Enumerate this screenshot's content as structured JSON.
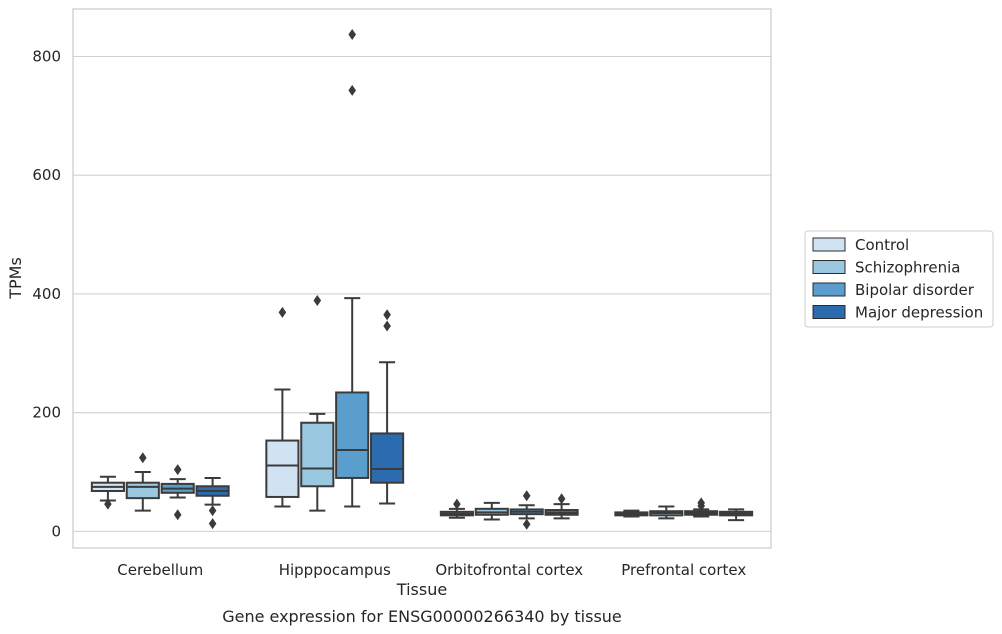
{
  "chart_data": {
    "type": "box",
    "caption": "Gene expression for ENSG00000266340 by tissue",
    "xlabel": "Tissue",
    "ylabel": "TPMs",
    "ylim": [
      -28,
      880
    ],
    "yticks": [
      0,
      200,
      400,
      600,
      800
    ],
    "grid": "horizontal",
    "legend_position": "right",
    "categories": [
      "Cerebellum",
      "Hipppocampus",
      "Orbitofrontal cortex",
      "Prefrontal cortex"
    ],
    "series": [
      {
        "name": "Control",
        "color": "#d1e3f3",
        "boxes": [
          {
            "whislo": 52,
            "q1": 68,
            "med": 75,
            "q3": 82,
            "whishi": 92,
            "fliers": [
              46
            ]
          },
          {
            "whislo": 42,
            "q1": 58,
            "med": 111,
            "q3": 153,
            "whishi": 239,
            "fliers": [
              369
            ]
          },
          {
            "whislo": 23,
            "q1": 27,
            "med": 30,
            "q3": 33,
            "whishi": 38,
            "fliers": [
              46
            ]
          },
          {
            "whislo": 25,
            "q1": 27,
            "med": 30,
            "q3": 32,
            "whishi": 35,
            "fliers": []
          }
        ]
      },
      {
        "name": "Schizophrenia",
        "color": "#9ac8e1",
        "boxes": [
          {
            "whislo": 35,
            "q1": 56,
            "med": 75,
            "q3": 82,
            "whishi": 100,
            "fliers": [
              124
            ]
          },
          {
            "whislo": 35,
            "q1": 76,
            "med": 106,
            "q3": 183,
            "whishi": 198,
            "fliers": [
              389
            ]
          },
          {
            "whislo": 20,
            "q1": 28,
            "med": 32,
            "q3": 38,
            "whishi": 48,
            "fliers": []
          },
          {
            "whislo": 22,
            "q1": 27,
            "med": 31,
            "q3": 34,
            "whishi": 42,
            "fliers": []
          }
        ]
      },
      {
        "name": "Bipolar disorder",
        "color": "#5a9ecd",
        "boxes": [
          {
            "whislo": 57,
            "q1": 65,
            "med": 72,
            "q3": 80,
            "whishi": 88,
            "fliers": [
              104,
              28
            ]
          },
          {
            "whislo": 42,
            "q1": 90,
            "med": 137,
            "q3": 234,
            "whishi": 393,
            "fliers": [
              837,
              743
            ]
          },
          {
            "whislo": 22,
            "q1": 29,
            "med": 33,
            "q3": 37,
            "whishi": 44,
            "fliers": [
              60,
              12
            ]
          },
          {
            "whislo": 25,
            "q1": 28,
            "med": 31,
            "q3": 34,
            "whishi": 37,
            "fliers": [
              48,
              43
            ]
          }
        ]
      },
      {
        "name": "Major depression",
        "color": "#2b6cb0",
        "boxes": [
          {
            "whislo": 45,
            "q1": 60,
            "med": 68,
            "q3": 76,
            "whishi": 90,
            "fliers": [
              35,
              13
            ]
          },
          {
            "whislo": 47,
            "q1": 82,
            "med": 105,
            "q3": 165,
            "whishi": 285,
            "fliers": [
              365,
              346
            ]
          },
          {
            "whislo": 22,
            "q1": 28,
            "med": 31,
            "q3": 36,
            "whishi": 46,
            "fliers": [
              55
            ]
          },
          {
            "whislo": 19,
            "q1": 27,
            "med": 30,
            "q3": 33,
            "whishi": 37,
            "fliers": []
          }
        ]
      }
    ]
  }
}
